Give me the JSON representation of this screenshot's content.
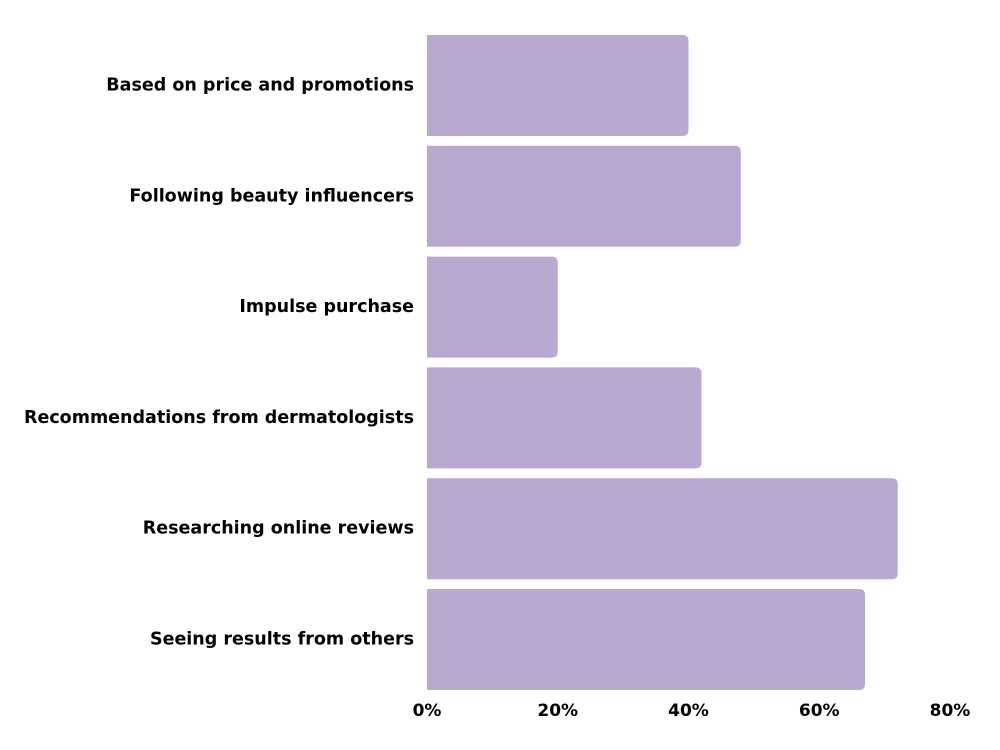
{
  "chart_data": {
    "type": "bar",
    "orientation": "horizontal",
    "categories": [
      "Based on price and promotions",
      "Following beauty influencers",
      "Impulse purchase",
      "Recommendations from dermatologists",
      "Researching online reviews",
      "Seeing results from others"
    ],
    "values": [
      40,
      48,
      20,
      42,
      72,
      67
    ],
    "value_unit": "%",
    "xlim": [
      0,
      80
    ],
    "x_ticks": [
      {
        "value": 0,
        "label": "0%"
      },
      {
        "value": 20,
        "label": "20%"
      },
      {
        "value": 40,
        "label": "40%"
      },
      {
        "value": 60,
        "label": "60%"
      },
      {
        "value": 80,
        "label": "80%"
      }
    ],
    "title": "",
    "xlabel": "",
    "ylabel": "",
    "grid": false,
    "legend": "none",
    "bar_color": "#b9a9d1",
    "text_color": "#000000"
  }
}
